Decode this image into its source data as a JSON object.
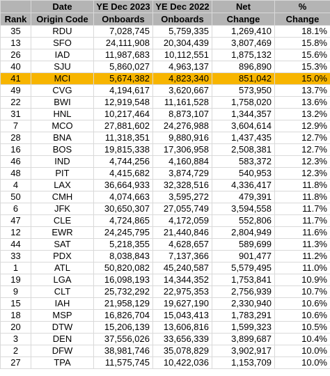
{
  "header_row1": [
    "",
    "Date",
    "YE Dec 2023",
    "YE Dec 2022",
    "Net",
    "%"
  ],
  "header_row2": [
    "Rank",
    "Origin Code",
    "Onboards",
    "Onboards",
    "Change",
    "Change"
  ],
  "highlight_color": "#f7b500",
  "rows": [
    {
      "rank": "35",
      "code": "RDU",
      "on2023": "7,028,745",
      "on2022": "5,759,335",
      "net": "1,269,410",
      "pct": "18.1%",
      "highlight": false
    },
    {
      "rank": "13",
      "code": "SFO",
      "on2023": "24,111,908",
      "on2022": "20,304,439",
      "net": "3,807,469",
      "pct": "15.8%",
      "highlight": false
    },
    {
      "rank": "26",
      "code": "IAD",
      "on2023": "11,987,683",
      "on2022": "10,112,551",
      "net": "1,875,132",
      "pct": "15.6%",
      "highlight": false
    },
    {
      "rank": "40",
      "code": "SJU",
      "on2023": "5,860,027",
      "on2022": "4,963,137",
      "net": "896,890",
      "pct": "15.3%",
      "highlight": false
    },
    {
      "rank": "41",
      "code": "MCI",
      "on2023": "5,674,382",
      "on2022": "4,823,340",
      "net": "851,042",
      "pct": "15.0%",
      "highlight": true
    },
    {
      "rank": "49",
      "code": "CVG",
      "on2023": "4,194,617",
      "on2022": "3,620,667",
      "net": "573,950",
      "pct": "13.7%",
      "highlight": false
    },
    {
      "rank": "22",
      "code": "BWI",
      "on2023": "12,919,548",
      "on2022": "11,161,528",
      "net": "1,758,020",
      "pct": "13.6%",
      "highlight": false
    },
    {
      "rank": "31",
      "code": "HNL",
      "on2023": "10,217,464",
      "on2022": "8,873,107",
      "net": "1,344,357",
      "pct": "13.2%",
      "highlight": false
    },
    {
      "rank": "7",
      "code": "MCO",
      "on2023": "27,881,602",
      "on2022": "24,276,988",
      "net": "3,604,614",
      "pct": "12.9%",
      "highlight": false
    },
    {
      "rank": "28",
      "code": "BNA",
      "on2023": "11,318,351",
      "on2022": "9,880,916",
      "net": "1,437,435",
      "pct": "12.7%",
      "highlight": false
    },
    {
      "rank": "16",
      "code": "BOS",
      "on2023": "19,815,338",
      "on2022": "17,306,958",
      "net": "2,508,381",
      "pct": "12.7%",
      "highlight": false
    },
    {
      "rank": "46",
      "code": "IND",
      "on2023": "4,744,256",
      "on2022": "4,160,884",
      "net": "583,372",
      "pct": "12.3%",
      "highlight": false
    },
    {
      "rank": "48",
      "code": "PIT",
      "on2023": "4,415,682",
      "on2022": "3,874,729",
      "net": "540,953",
      "pct": "12.3%",
      "highlight": false
    },
    {
      "rank": "4",
      "code": "LAX",
      "on2023": "36,664,933",
      "on2022": "32,328,516",
      "net": "4,336,417",
      "pct": "11.8%",
      "highlight": false
    },
    {
      "rank": "50",
      "code": "CMH",
      "on2023": "4,074,663",
      "on2022": "3,595,272",
      "net": "479,391",
      "pct": "11.8%",
      "highlight": false
    },
    {
      "rank": "6",
      "code": "JFK",
      "on2023": "30,650,307",
      "on2022": "27,055,749",
      "net": "3,594,558",
      "pct": "11.7%",
      "highlight": false
    },
    {
      "rank": "47",
      "code": "CLE",
      "on2023": "4,724,865",
      "on2022": "4,172,059",
      "net": "552,806",
      "pct": "11.7%",
      "highlight": false
    },
    {
      "rank": "12",
      "code": "EWR",
      "on2023": "24,245,795",
      "on2022": "21,440,846",
      "net": "2,804,949",
      "pct": "11.6%",
      "highlight": false
    },
    {
      "rank": "44",
      "code": "SAT",
      "on2023": "5,218,355",
      "on2022": "4,628,657",
      "net": "589,699",
      "pct": "11.3%",
      "highlight": false
    },
    {
      "rank": "33",
      "code": "PDX",
      "on2023": "8,038,843",
      "on2022": "7,137,366",
      "net": "901,477",
      "pct": "11.2%",
      "highlight": false
    },
    {
      "rank": "1",
      "code": "ATL",
      "on2023": "50,820,082",
      "on2022": "45,240,587",
      "net": "5,579,495",
      "pct": "11.0%",
      "highlight": false
    },
    {
      "rank": "19",
      "code": "LGA",
      "on2023": "16,098,193",
      "on2022": "14,344,352",
      "net": "1,753,841",
      "pct": "10.9%",
      "highlight": false
    },
    {
      "rank": "9",
      "code": "CLT",
      "on2023": "25,732,292",
      "on2022": "22,975,353",
      "net": "2,756,939",
      "pct": "10.7%",
      "highlight": false
    },
    {
      "rank": "15",
      "code": "IAH",
      "on2023": "21,958,129",
      "on2022": "19,627,190",
      "net": "2,330,940",
      "pct": "10.6%",
      "highlight": false
    },
    {
      "rank": "18",
      "code": "MSP",
      "on2023": "16,826,704",
      "on2022": "15,043,413",
      "net": "1,783,291",
      "pct": "10.6%",
      "highlight": false
    },
    {
      "rank": "20",
      "code": "DTW",
      "on2023": "15,206,139",
      "on2022": "13,606,816",
      "net": "1,599,323",
      "pct": "10.5%",
      "highlight": false
    },
    {
      "rank": "3",
      "code": "DEN",
      "on2023": "37,556,026",
      "on2022": "33,656,339",
      "net": "3,899,687",
      "pct": "10.4%",
      "highlight": false
    },
    {
      "rank": "2",
      "code": "DFW",
      "on2023": "38,981,746",
      "on2022": "35,078,829",
      "net": "3,902,917",
      "pct": "10.0%",
      "highlight": false
    },
    {
      "rank": "27",
      "code": "TPA",
      "on2023": "11,575,745",
      "on2022": "10,422,036",
      "net": "1,153,709",
      "pct": "10.0%",
      "highlight": false
    }
  ]
}
